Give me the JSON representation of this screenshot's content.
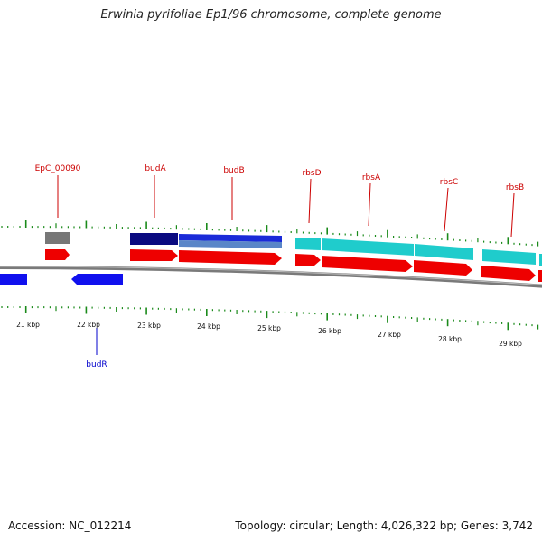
{
  "title": "Erwinia pyrifoliae Ep1/96 chromosome, complete genome",
  "footer": {
    "accession": "Accession: NC_012214",
    "summary": "Topology: circular; Length: 4,026,322 bp; Genes: 3,742"
  },
  "colors": {
    "forward_cds": "#ee0000",
    "reverse_cds": "#1010ee",
    "rbs_operon": "#1fcccc",
    "bud_operon_dark": "#0a0a80",
    "bud_operon_blue": "#1a2ad8",
    "pseudo": "#777777",
    "backbone": "#888888",
    "ticks": "#1a8a1a",
    "label_forward": "#cc0000",
    "label_reverse": "#0000cc"
  },
  "kbp_labels": [
    "21 kbp",
    "22 kbp",
    "23 kbp",
    "24 kbp",
    "25 kbp",
    "26 kbp",
    "27 kbp",
    "28 kbp",
    "29 kbp"
  ],
  "genes_labeled": [
    {
      "name": "EpC_00090",
      "strand": "forward"
    },
    {
      "name": "budA",
      "strand": "forward"
    },
    {
      "name": "budB",
      "strand": "forward"
    },
    {
      "name": "rbsD",
      "strand": "forward"
    },
    {
      "name": "rbsA",
      "strand": "forward"
    },
    {
      "name": "rbsC",
      "strand": "forward"
    },
    {
      "name": "rbsB",
      "strand": "forward"
    },
    {
      "name": "budR",
      "strand": "reverse"
    }
  ]
}
